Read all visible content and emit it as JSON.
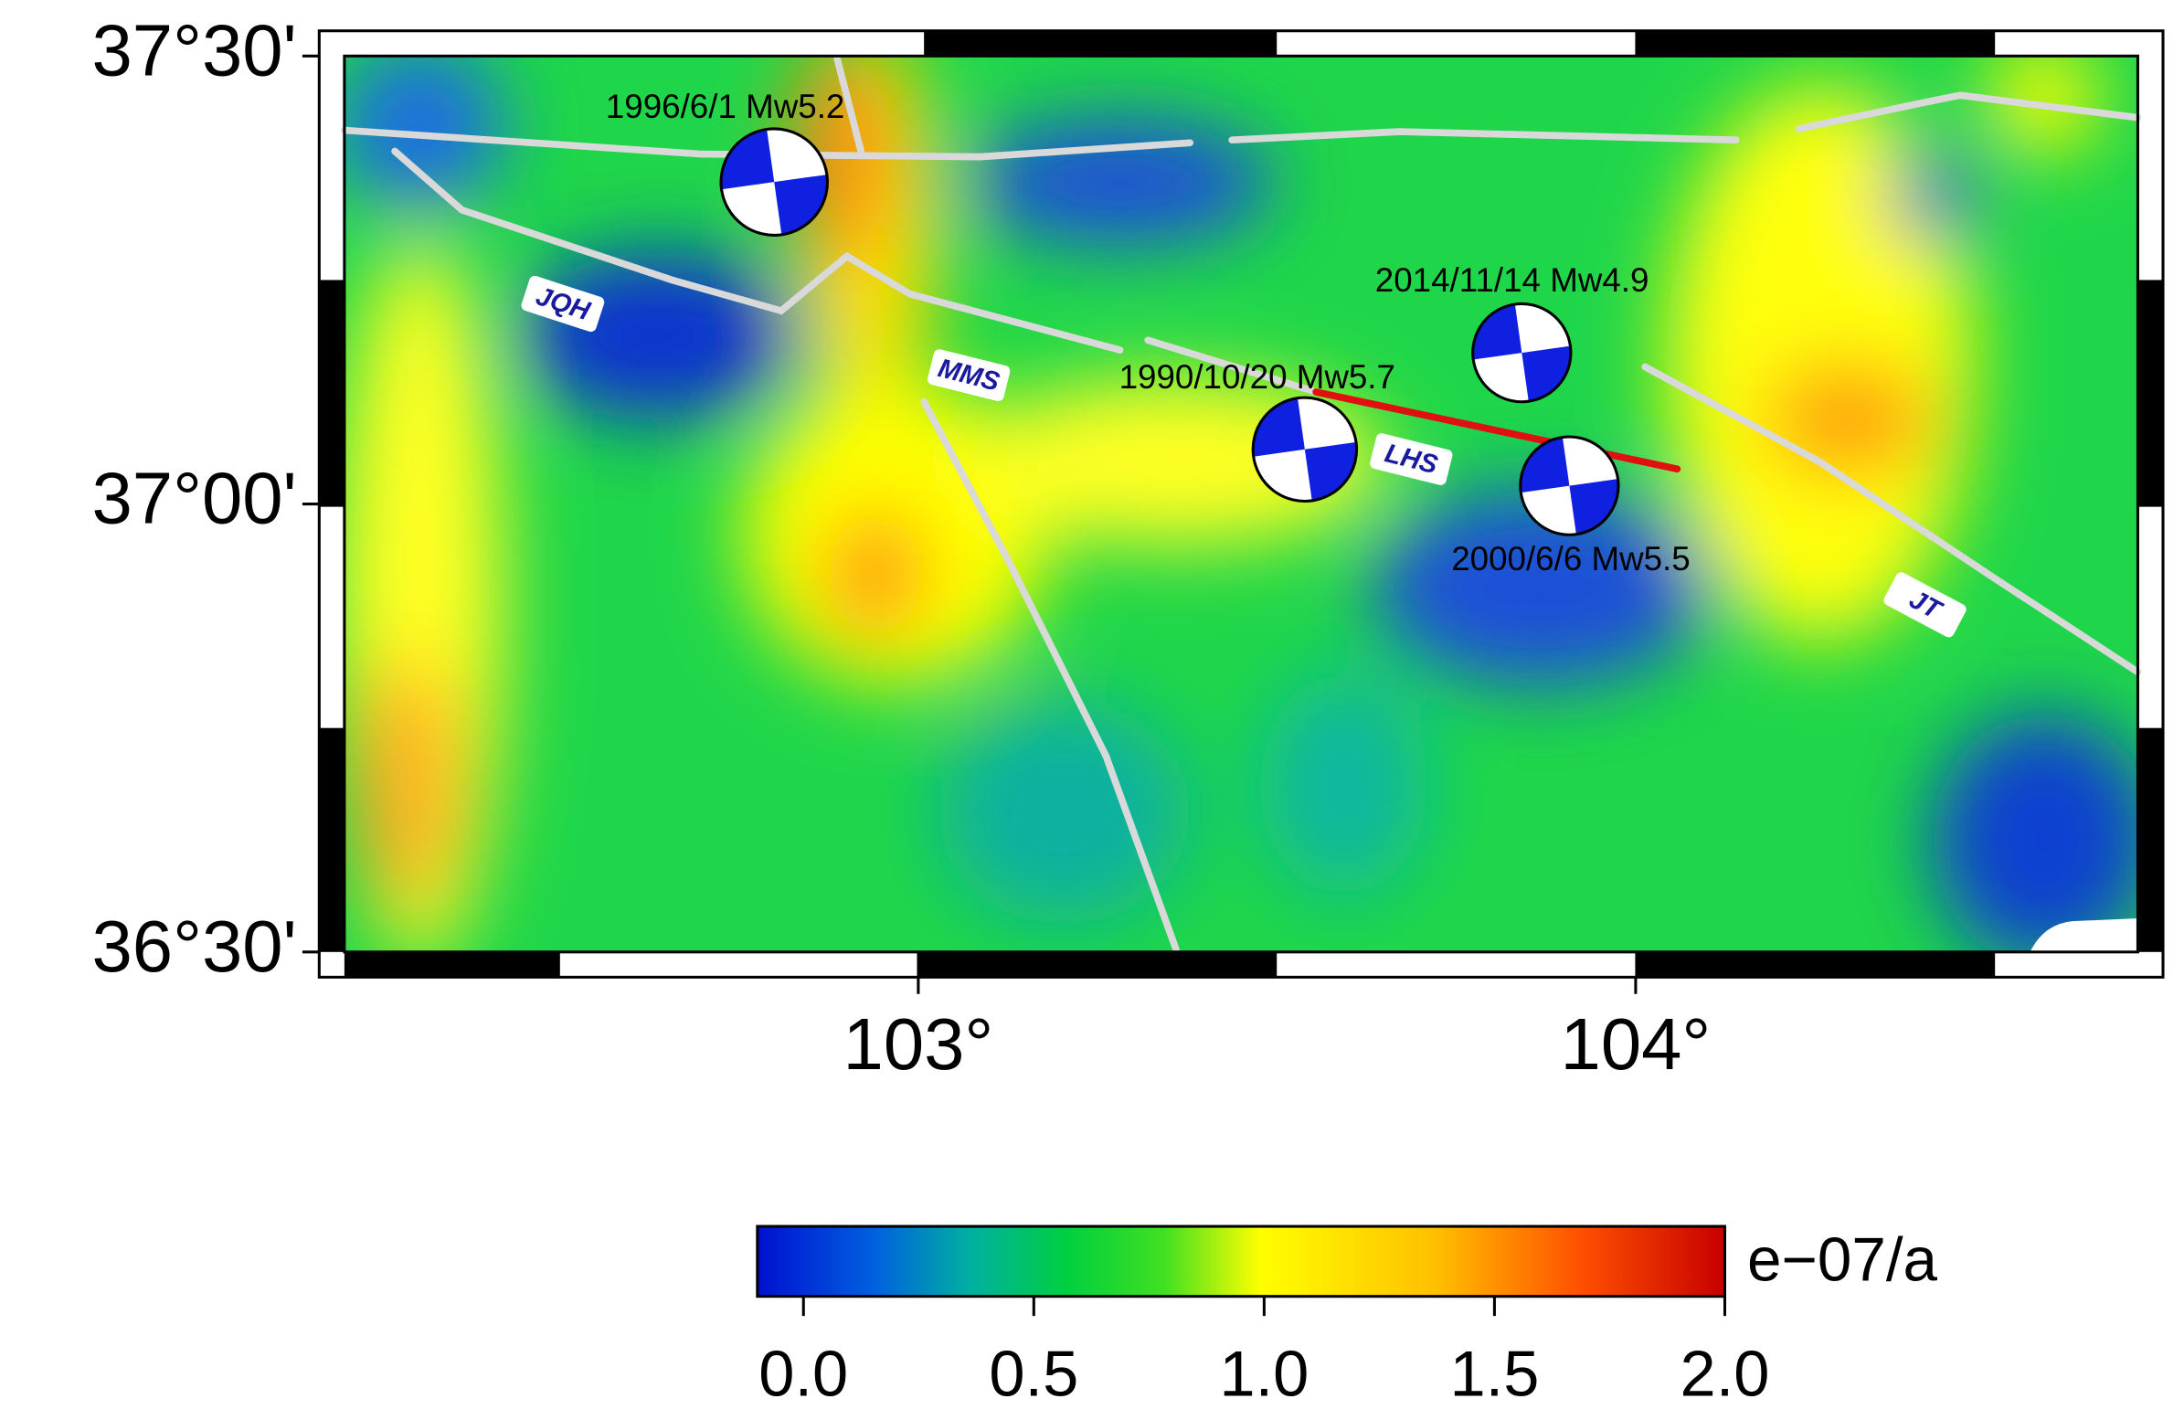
{
  "map": {
    "xlim": [
      102.2,
      104.7
    ],
    "ylim": [
      36.5,
      37.5
    ],
    "xticks": [
      {
        "value": 103,
        "label": "103°"
      },
      {
        "value": 104,
        "label": "104°"
      }
    ],
    "yticks": [
      {
        "value": 37.5,
        "label": "37°30'"
      },
      {
        "value": 37.0,
        "label": "37°00'"
      },
      {
        "value": 36.5,
        "label": "36°30'"
      }
    ],
    "events": [
      "1996/6/1 Mw5.2",
      "2014/11/14 Mw4.9",
      "1990/10/20 Mw5.7",
      "2000/6/6 Mw5.5"
    ],
    "faults": [
      "JQH",
      "MMS",
      "LHS",
      "JT"
    ]
  },
  "colorbar": {
    "unit": "e−07/a",
    "lim": [
      -0.1,
      2.0
    ],
    "ticks": [
      {
        "value": 0,
        "label": "0.0"
      },
      {
        "value": 0.5,
        "label": "0.5"
      },
      {
        "value": 1,
        "label": "1.0"
      },
      {
        "value": 1.5,
        "label": "1.5"
      },
      {
        "value": 2,
        "label": "2.0"
      }
    ]
  }
}
